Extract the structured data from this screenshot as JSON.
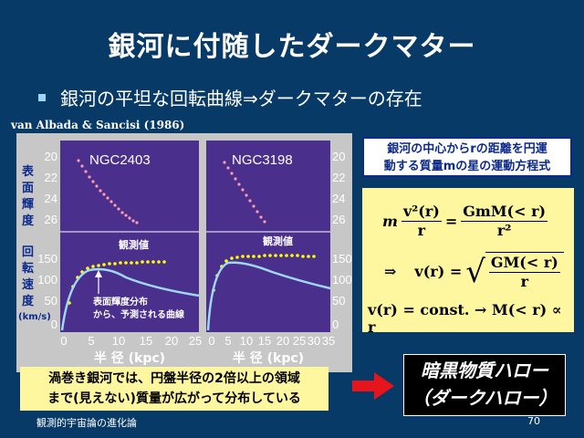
{
  "title": "銀河に付随したダークマター",
  "bullet": "銀河の平坦な回転曲線⇒ダークマターの存在",
  "citation": "van Albada & Sancisi (1986)",
  "figure": {
    "left_panel_name": "NGC2403",
    "right_panel_name": "NGC3198",
    "y_label_top": [
      "表",
      "面",
      "輝",
      "度"
    ],
    "y_label_bottom": [
      "回",
      "転",
      "速",
      "度"
    ],
    "y_unit": "(km/s)",
    "top_ticks": [
      "20",
      "22",
      "24",
      "26"
    ],
    "bottom_ticks": [
      "150",
      "100",
      "50",
      "0"
    ],
    "left_x_ticks": [
      "0",
      "5",
      "10",
      "15",
      "20",
      "25"
    ],
    "right_x_ticks": [
      "0",
      "5",
      "10",
      "15",
      "20",
      "25",
      "30",
      "35"
    ],
    "x_label": "半 径 (kpc)",
    "observed_label": "観測値",
    "annotation_line1": "表面輝度分布",
    "annotation_line2": "から、予測される曲線",
    "colors": {
      "panel": "#4a2f8c",
      "obs": "#ffff00",
      "pred": "#9fd8ff",
      "surf": "#ff9ab0"
    }
  },
  "eq_label": {
    "line1": "銀河の中心からrの距離を円運",
    "line2": "動する質量mの星の運動方程式"
  },
  "equations": {
    "eq1_m": "m",
    "eq1_num": "v²(r)",
    "eq1_den": "r",
    "eq1_eq": "=",
    "eq1_rhs_num": "GmM(< r)",
    "eq1_rhs_den": "r²",
    "eq2_arrow": "⇒",
    "eq2_lhs": "v(r) =",
    "eq2_sqrt_num": "GM(< r)",
    "eq2_sqrt_den": "r",
    "eq3": "v(r) = const. → M(< r) ∝ r"
  },
  "conclusion": {
    "line1": "渦巻き銀河では、円盤半径の2倍以上の領域",
    "line2": "まで(見えない)質量が広がって分布している"
  },
  "result": {
    "line1": "暗黒物質ハロー",
    "line2": "（ダークハロー）"
  },
  "footer": {
    "left": "観測的宇宙論の進化論",
    "page": "70"
  }
}
